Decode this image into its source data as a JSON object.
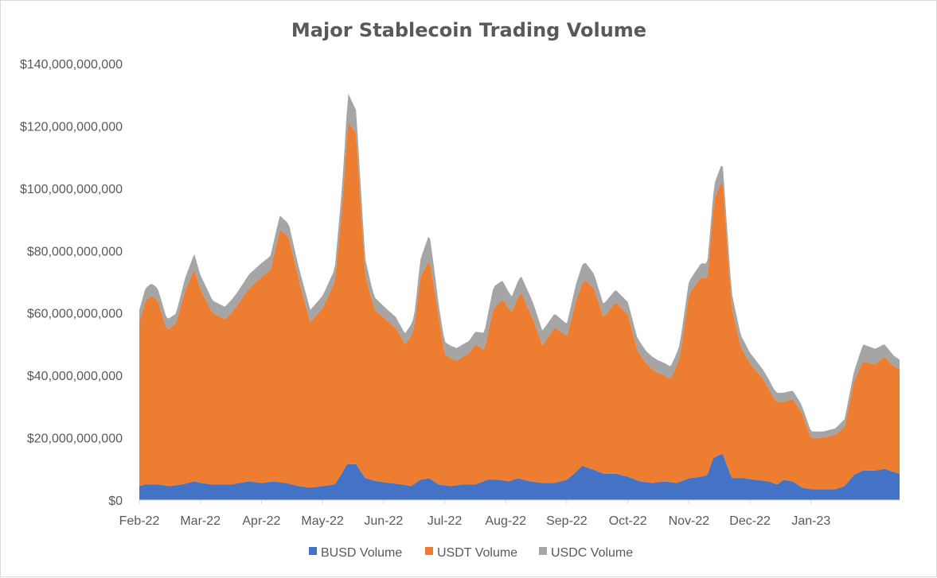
{
  "chart_data": {
    "type": "area",
    "stacked": true,
    "title": "Major Stablecoin Trading Volume",
    "xlabel": "",
    "ylabel": "",
    "ylim": [
      0,
      140000000000
    ],
    "y_ticks": [
      0,
      20000000000,
      40000000000,
      60000000000,
      80000000000,
      100000000000,
      120000000000,
      140000000000
    ],
    "y_tick_labels": [
      "$0",
      "$20,000,000,000",
      "$40,000,000,000",
      "$60,000,000,000",
      "$80,000,000,000",
      "$100,000,000,000",
      "$120,000,000,000",
      "$140,000,000,000"
    ],
    "x_start_month": 0,
    "x_end_month": 12.45,
    "x_tick_months": [
      0,
      1,
      2,
      3,
      4,
      5,
      6,
      7,
      8,
      9,
      10,
      11
    ],
    "x_tick_labels": [
      "Feb-22",
      "Mar-22",
      "Apr-22",
      "May-22",
      "Jun-22",
      "Jul-22",
      "Aug-22",
      "Sep-22",
      "Oct-22",
      "Nov-22",
      "Dec-22",
      "Jan-23"
    ],
    "grid": false,
    "legend_position": "bottom",
    "colors": {
      "BUSD Volume": "#4472c4",
      "USDT Volume": "#ed7d31",
      "USDC Volume": "#a5a5a5"
    },
    "series": [
      {
        "name": "BUSD Volume",
        "points": [
          [
            0,
            4500000000.0
          ],
          [
            0.1,
            5000000000.0
          ],
          [
            0.3,
            5000000000.0
          ],
          [
            0.5,
            4500000000.0
          ],
          [
            0.7,
            5000000000.0
          ],
          [
            0.9,
            6000000000.0
          ],
          [
            1.0,
            5500000000.0
          ],
          [
            1.2,
            5000000000.0
          ],
          [
            1.5,
            5000000000.0
          ],
          [
            1.8,
            6000000000.0
          ],
          [
            2.0,
            5500000000.0
          ],
          [
            2.2,
            6000000000.0
          ],
          [
            2.4,
            5500000000.0
          ],
          [
            2.6,
            4500000000.0
          ],
          [
            2.8,
            4000000000.0
          ],
          [
            3.0,
            4500000000.0
          ],
          [
            3.2,
            5000000000.0
          ],
          [
            3.3,
            8000000000.0
          ],
          [
            3.4,
            11500000000.0
          ],
          [
            3.55,
            11500000000.0
          ],
          [
            3.7,
            7000000000.0
          ],
          [
            3.9,
            6000000000.0
          ],
          [
            4.1,
            5500000000.0
          ],
          [
            4.3,
            5000000000.0
          ],
          [
            4.45,
            4500000000.0
          ],
          [
            4.6,
            6500000000.0
          ],
          [
            4.75,
            7000000000.0
          ],
          [
            4.9,
            5000000000.0
          ],
          [
            5.1,
            4500000000.0
          ],
          [
            5.3,
            5000000000.0
          ],
          [
            5.5,
            5000000000.0
          ],
          [
            5.7,
            6500000000.0
          ],
          [
            5.9,
            6500000000.0
          ],
          [
            6.05,
            6000000000.0
          ],
          [
            6.2,
            7000000000.0
          ],
          [
            6.4,
            6000000000.0
          ],
          [
            6.6,
            5500000000.0
          ],
          [
            6.8,
            5500000000.0
          ],
          [
            7.0,
            6500000000.0
          ],
          [
            7.15,
            9000000000.0
          ],
          [
            7.25,
            11000000000.0
          ],
          [
            7.4,
            10000000000.0
          ],
          [
            7.6,
            8500000000.0
          ],
          [
            7.8,
            8500000000.0
          ],
          [
            8.0,
            7500000000.0
          ],
          [
            8.2,
            6000000000.0
          ],
          [
            8.4,
            5500000000.0
          ],
          [
            8.6,
            6000000000.0
          ],
          [
            8.8,
            5500000000.0
          ],
          [
            9.0,
            7000000000.0
          ],
          [
            9.2,
            7500000000.0
          ],
          [
            9.3,
            8000000000.0
          ],
          [
            9.4,
            13500000000.0
          ],
          [
            9.55,
            15000000000.0
          ],
          [
            9.7,
            7000000000.0
          ],
          [
            9.9,
            7000000000.0
          ],
          [
            10.1,
            6500000000.0
          ],
          [
            10.3,
            6000000000.0
          ],
          [
            10.45,
            5000000000.0
          ],
          [
            10.55,
            6500000000.0
          ],
          [
            10.7,
            6000000000.0
          ],
          [
            10.85,
            4000000000.0
          ],
          [
            11.0,
            3500000000.0
          ],
          [
            11.2,
            3500000000.0
          ],
          [
            11.4,
            3500000000.0
          ],
          [
            11.55,
            4500000000.0
          ],
          [
            11.7,
            8000000000.0
          ],
          [
            11.85,
            9500000000.0
          ],
          [
            12.05,
            9500000000.0
          ],
          [
            12.2,
            10000000000.0
          ],
          [
            12.35,
            9000000000.0
          ],
          [
            12.45,
            8500000000.0
          ]
        ]
      },
      {
        "name": "USDT Volume",
        "points": [
          [
            0,
            52500000000.0
          ],
          [
            0.1,
            59000000000.0
          ],
          [
            0.2,
            60500000000.0
          ],
          [
            0.3,
            59000000000.0
          ],
          [
            0.45,
            50000000000.0
          ],
          [
            0.6,
            52000000000.0
          ],
          [
            0.75,
            62000000000.0
          ],
          [
            0.9,
            68000000000.0
          ],
          [
            1.0,
            62000000000.0
          ],
          [
            1.2,
            55000000000.0
          ],
          [
            1.4,
            53000000000.0
          ],
          [
            1.6,
            57000000000.0
          ],
          [
            1.8,
            62000000000.0
          ],
          [
            2.0,
            66000000000.0
          ],
          [
            2.15,
            68000000000.0
          ],
          [
            2.3,
            81000000000.0
          ],
          [
            2.45,
            79000000000.0
          ],
          [
            2.6,
            67000000000.0
          ],
          [
            2.8,
            53000000000.0
          ],
          [
            3.0,
            57000000000.0
          ],
          [
            3.2,
            65000000000.0
          ],
          [
            3.32,
            85000000000.0
          ],
          [
            3.42,
            110000000000.0
          ],
          [
            3.55,
            106000000000.0
          ],
          [
            3.7,
            65000000000.0
          ],
          [
            3.85,
            55000000000.0
          ],
          [
            4.05,
            52000000000.0
          ],
          [
            4.2,
            50000000000.0
          ],
          [
            4.35,
            45000000000.0
          ],
          [
            4.5,
            50000000000.0
          ],
          [
            4.6,
            65000000000.0
          ],
          [
            4.75,
            70000000000.0
          ],
          [
            4.85,
            60000000000.0
          ],
          [
            5.0,
            42000000000.0
          ],
          [
            5.2,
            40000000000.0
          ],
          [
            5.4,
            42000000000.0
          ],
          [
            5.5,
            45000000000.0
          ],
          [
            5.65,
            42000000000.0
          ],
          [
            5.8,
            55000000000.0
          ],
          [
            5.95,
            58000000000.0
          ],
          [
            6.1,
            54000000000.0
          ],
          [
            6.25,
            60000000000.0
          ],
          [
            6.45,
            52000000000.0
          ],
          [
            6.6,
            44000000000.0
          ],
          [
            6.8,
            50000000000.0
          ],
          [
            7.0,
            46000000000.0
          ],
          [
            7.15,
            55000000000.0
          ],
          [
            7.3,
            60000000000.0
          ],
          [
            7.45,
            58000000000.0
          ],
          [
            7.6,
            50000000000.0
          ],
          [
            7.8,
            55000000000.0
          ],
          [
            8.0,
            52000000000.0
          ],
          [
            8.15,
            42000000000.0
          ],
          [
            8.3,
            38000000000.0
          ],
          [
            8.5,
            35000000000.0
          ],
          [
            8.7,
            33000000000.0
          ],
          [
            8.85,
            40000000000.0
          ],
          [
            9.0,
            59000000000.0
          ],
          [
            9.2,
            64000000000.0
          ],
          [
            9.3,
            63000000000.0
          ],
          [
            9.42,
            83000000000.0
          ],
          [
            9.55,
            88000000000.0
          ],
          [
            9.7,
            55000000000.0
          ],
          [
            9.85,
            42000000000.0
          ],
          [
            10.0,
            37000000000.0
          ],
          [
            10.2,
            33000000000.0
          ],
          [
            10.4,
            27000000000.0
          ],
          [
            10.55,
            25000000000.0
          ],
          [
            10.7,
            26500000000.0
          ],
          [
            10.85,
            24000000000.0
          ],
          [
            11.0,
            16500000000.0
          ],
          [
            11.2,
            16500000000.0
          ],
          [
            11.4,
            17500000000.0
          ],
          [
            11.55,
            19000000000.0
          ],
          [
            11.7,
            30000000000.0
          ],
          [
            11.85,
            35000000000.0
          ],
          [
            12.05,
            34000000000.0
          ],
          [
            12.2,
            36000000000.0
          ],
          [
            12.35,
            34000000000.0
          ],
          [
            12.45,
            33500000000.0
          ]
        ]
      },
      {
        "name": "USDC Volume",
        "points": [
          [
            0,
            4000000000.0
          ],
          [
            0.3,
            4000000000.0
          ],
          [
            0.6,
            3000000000.0
          ],
          [
            0.9,
            5000000000.0
          ],
          [
            1.2,
            4000000000.0
          ],
          [
            1.5,
            4000000000.0
          ],
          [
            1.8,
            4500000000.0
          ],
          [
            2.0,
            4500000000.0
          ],
          [
            2.3,
            4500000000.0
          ],
          [
            2.6,
            4000000000.0
          ],
          [
            3.0,
            4000000000.0
          ],
          [
            3.2,
            4000000000.0
          ],
          [
            3.42,
            9000000000.0
          ],
          [
            3.55,
            7500000000.0
          ],
          [
            3.8,
            4000000000.0
          ],
          [
            4.2,
            3500000000.0
          ],
          [
            4.5,
            3500000000.0
          ],
          [
            4.75,
            8500000000.0
          ],
          [
            4.9,
            4000000000.0
          ],
          [
            5.2,
            4000000000.0
          ],
          [
            5.5,
            4000000000.0
          ],
          [
            5.8,
            7000000000.0
          ],
          [
            6.1,
            5000000000.0
          ],
          [
            6.4,
            5500000000.0
          ],
          [
            6.7,
            4500000000.0
          ],
          [
            7.0,
            4000000000.0
          ],
          [
            7.25,
            6000000000.0
          ],
          [
            7.5,
            4500000000.0
          ],
          [
            7.8,
            4000000000.0
          ],
          [
            8.2,
            4000000000.0
          ],
          [
            8.5,
            4000000000.0
          ],
          [
            8.85,
            4000000000.0
          ],
          [
            9.2,
            4500000000.0
          ],
          [
            9.42,
            5000000000.0
          ],
          [
            9.55,
            5500000000.0
          ],
          [
            9.8,
            4000000000.0
          ],
          [
            10.2,
            3000000000.0
          ],
          [
            10.5,
            3000000000.0
          ],
          [
            10.8,
            2500000000.0
          ],
          [
            11.0,
            2000000000.0
          ],
          [
            11.4,
            2000000000.0
          ],
          [
            11.7,
            3000000000.0
          ],
          [
            11.85,
            5500000000.0
          ],
          [
            12.05,
            5000000000.0
          ],
          [
            12.2,
            4000000000.0
          ],
          [
            12.45,
            3000000000.0
          ]
        ]
      }
    ]
  }
}
